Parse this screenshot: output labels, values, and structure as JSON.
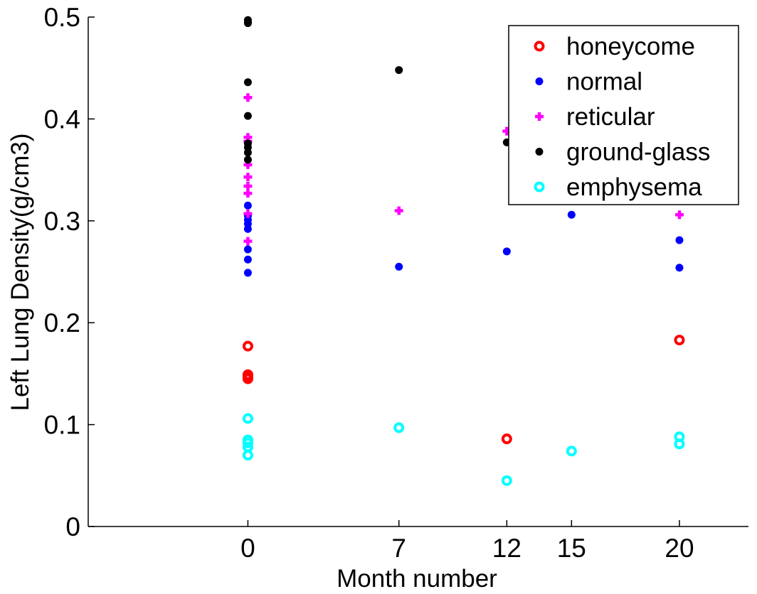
{
  "chart_data": {
    "type": "scatter",
    "title": "",
    "xlabel": "Month number",
    "ylabel": "Left Lung Density(g/cm3)",
    "xlim": [
      -7.4,
      23.2
    ],
    "ylim": [
      0,
      0.5
    ],
    "xticks": [
      0,
      7,
      12,
      15,
      20
    ],
    "xtick_labels": [
      "0",
      "7",
      "12",
      "15",
      "20"
    ],
    "yticks": [
      0,
      0.1,
      0.2,
      0.3,
      0.4,
      0.5
    ],
    "ytick_labels": [
      "0",
      "0.1",
      "0.2",
      "0.3",
      "0.4",
      "0.5"
    ],
    "grid": false,
    "legend_position": "top-right",
    "series": [
      {
        "name": "honeycome",
        "marker": "open-circle",
        "color": "#ff0000",
        "points": [
          [
            0,
            0.177
          ],
          [
            0,
            0.149
          ],
          [
            0,
            0.147
          ],
          [
            0,
            0.145
          ],
          [
            12,
            0.086
          ],
          [
            20,
            0.183
          ]
        ]
      },
      {
        "name": "normal",
        "marker": "filled-circle",
        "color": "#0000ff",
        "points": [
          [
            0,
            0.315
          ],
          [
            0,
            0.305
          ],
          [
            0,
            0.301
          ],
          [
            0,
            0.297
          ],
          [
            0,
            0.292
          ],
          [
            0,
            0.272
          ],
          [
            0,
            0.262
          ],
          [
            0,
            0.249
          ],
          [
            7,
            0.255
          ],
          [
            12,
            0.27
          ],
          [
            15,
            0.306
          ],
          [
            20,
            0.281
          ],
          [
            20,
            0.254
          ]
        ]
      },
      {
        "name": "reticular",
        "marker": "plus",
        "color": "#ff00ff",
        "points": [
          [
            0,
            0.421
          ],
          [
            0,
            0.382
          ],
          [
            0,
            0.378
          ],
          [
            0,
            0.355
          ],
          [
            0,
            0.343
          ],
          [
            0,
            0.334
          ],
          [
            0,
            0.327
          ],
          [
            0,
            0.307
          ],
          [
            0,
            0.28
          ],
          [
            7,
            0.31
          ],
          [
            12,
            0.388
          ],
          [
            20,
            0.306
          ]
        ]
      },
      {
        "name": "ground-glass",
        "marker": "filled-circle",
        "color": "#000000",
        "points": [
          [
            0,
            0.497
          ],
          [
            0,
            0.495
          ],
          [
            0,
            0.494
          ],
          [
            0,
            0.436
          ],
          [
            0,
            0.403
          ],
          [
            0,
            0.376
          ],
          [
            0,
            0.372
          ],
          [
            0,
            0.367
          ],
          [
            0,
            0.36
          ],
          [
            7,
            0.448
          ],
          [
            12,
            0.377
          ]
        ]
      },
      {
        "name": "emphysema",
        "marker": "open-circle",
        "color": "#00ffff",
        "points": [
          [
            0,
            0.106
          ],
          [
            0,
            0.085
          ],
          [
            0,
            0.082
          ],
          [
            0,
            0.078
          ],
          [
            0,
            0.07
          ],
          [
            7,
            0.097
          ],
          [
            12,
            0.045
          ],
          [
            15,
            0.074
          ],
          [
            20,
            0.088
          ],
          [
            20,
            0.081
          ]
        ]
      }
    ]
  }
}
